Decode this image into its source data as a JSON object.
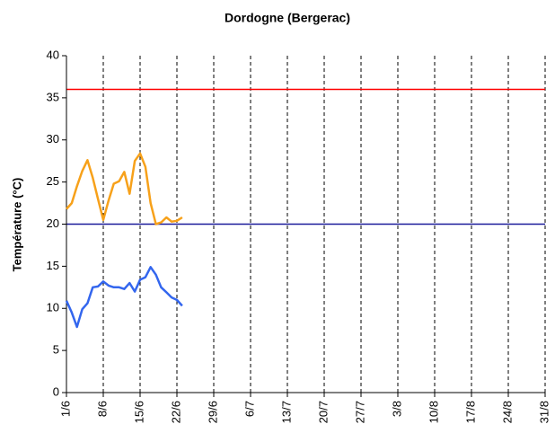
{
  "chart_data": {
    "type": "line",
    "title": "Dordogne (Bergerac)",
    "y_label": "Température (°C)",
    "x": [
      "1/6",
      "2/6",
      "3/6",
      "4/6",
      "5/6",
      "6/6",
      "7/6",
      "8/6",
      "9/6",
      "10/6",
      "11/6",
      "12/6",
      "13/6",
      "14/6",
      "15/6",
      "16/6",
      "17/6",
      "18/6",
      "19/6",
      "20/6",
      "21/6",
      "22/6",
      "23/6"
    ],
    "series": [
      {
        "color": "#f7a11a",
        "values": [
          21.8,
          22.5,
          24.5,
          26.3,
          27.6,
          25.5,
          23.0,
          20.5,
          22.8,
          24.8,
          25.1,
          26.2,
          23.6,
          27.5,
          28.4,
          26.8,
          22.5,
          20.0,
          20.2,
          20.8,
          20.3,
          20.4,
          20.8
        ]
      },
      {
        "color": "#3366ee",
        "values": [
          10.9,
          9.5,
          7.8,
          9.9,
          10.6,
          12.5,
          12.6,
          13.2,
          12.7,
          12.5,
          12.5,
          12.3,
          13.0,
          12.0,
          13.4,
          13.7,
          14.9,
          14.0,
          12.5,
          11.9,
          11.3,
          11.0,
          10.3
        ]
      }
    ],
    "reference_lines": [
      {
        "value": 36,
        "color": "#ff0000"
      },
      {
        "value": 20,
        "color": "#1a1a9a"
      }
    ],
    "xlim": [
      "1/6",
      "31/8"
    ],
    "xticks": [
      "1/6",
      "8/6",
      "15/6",
      "22/6",
      "29/6",
      "6/7",
      "13/7",
      "20/7",
      "27/7",
      "3/8",
      "10/8",
      "17/8",
      "24/8",
      "31/8"
    ],
    "ylim": [
      0,
      40
    ],
    "yticks": [
      0,
      5,
      10,
      15,
      20,
      25,
      30,
      35,
      40
    ],
    "grid": "dashed-vertical"
  }
}
